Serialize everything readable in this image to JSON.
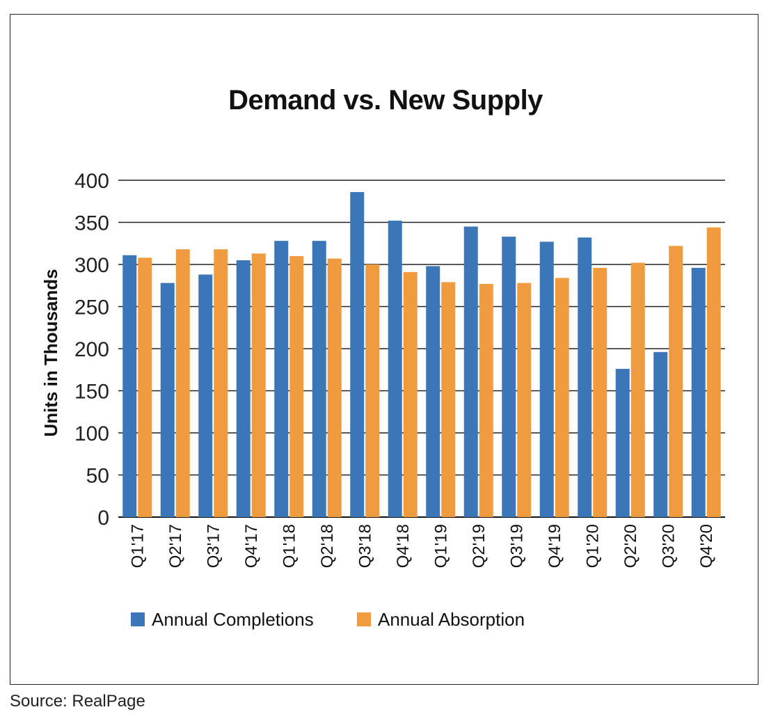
{
  "chart_data": {
    "type": "bar",
    "title": "Demand vs. New Supply",
    "xlabel": "",
    "ylabel": "Units in Thousands",
    "ylim": [
      0,
      400
    ],
    "yticks": [
      0,
      50,
      100,
      150,
      200,
      250,
      300,
      350,
      400
    ],
    "grid": true,
    "legend_position": "bottom",
    "categories": [
      "Q1'17",
      "Q2'17",
      "Q3'17",
      "Q4'17",
      "Q1'18",
      "Q2'18",
      "Q3'18",
      "Q4'18",
      "Q1'19",
      "Q2'19",
      "Q3'19",
      "Q4'19",
      "Q1'20",
      "Q2'20",
      "Q3'20",
      "Q4'20"
    ],
    "series": [
      {
        "name": "Annual Completions",
        "color": "#3b76b8",
        "values": [
          311,
          278,
          288,
          305,
          328,
          328,
          386,
          352,
          298,
          345,
          333,
          327,
          332,
          176,
          196,
          296
        ]
      },
      {
        "name": "Annual Absorption",
        "color": "#ef9b3f",
        "values": [
          308,
          318,
          318,
          313,
          310,
          307,
          300,
          291,
          279,
          277,
          278,
          284,
          296,
          302,
          322,
          344
        ]
      }
    ]
  },
  "source": "Source: RealPage"
}
